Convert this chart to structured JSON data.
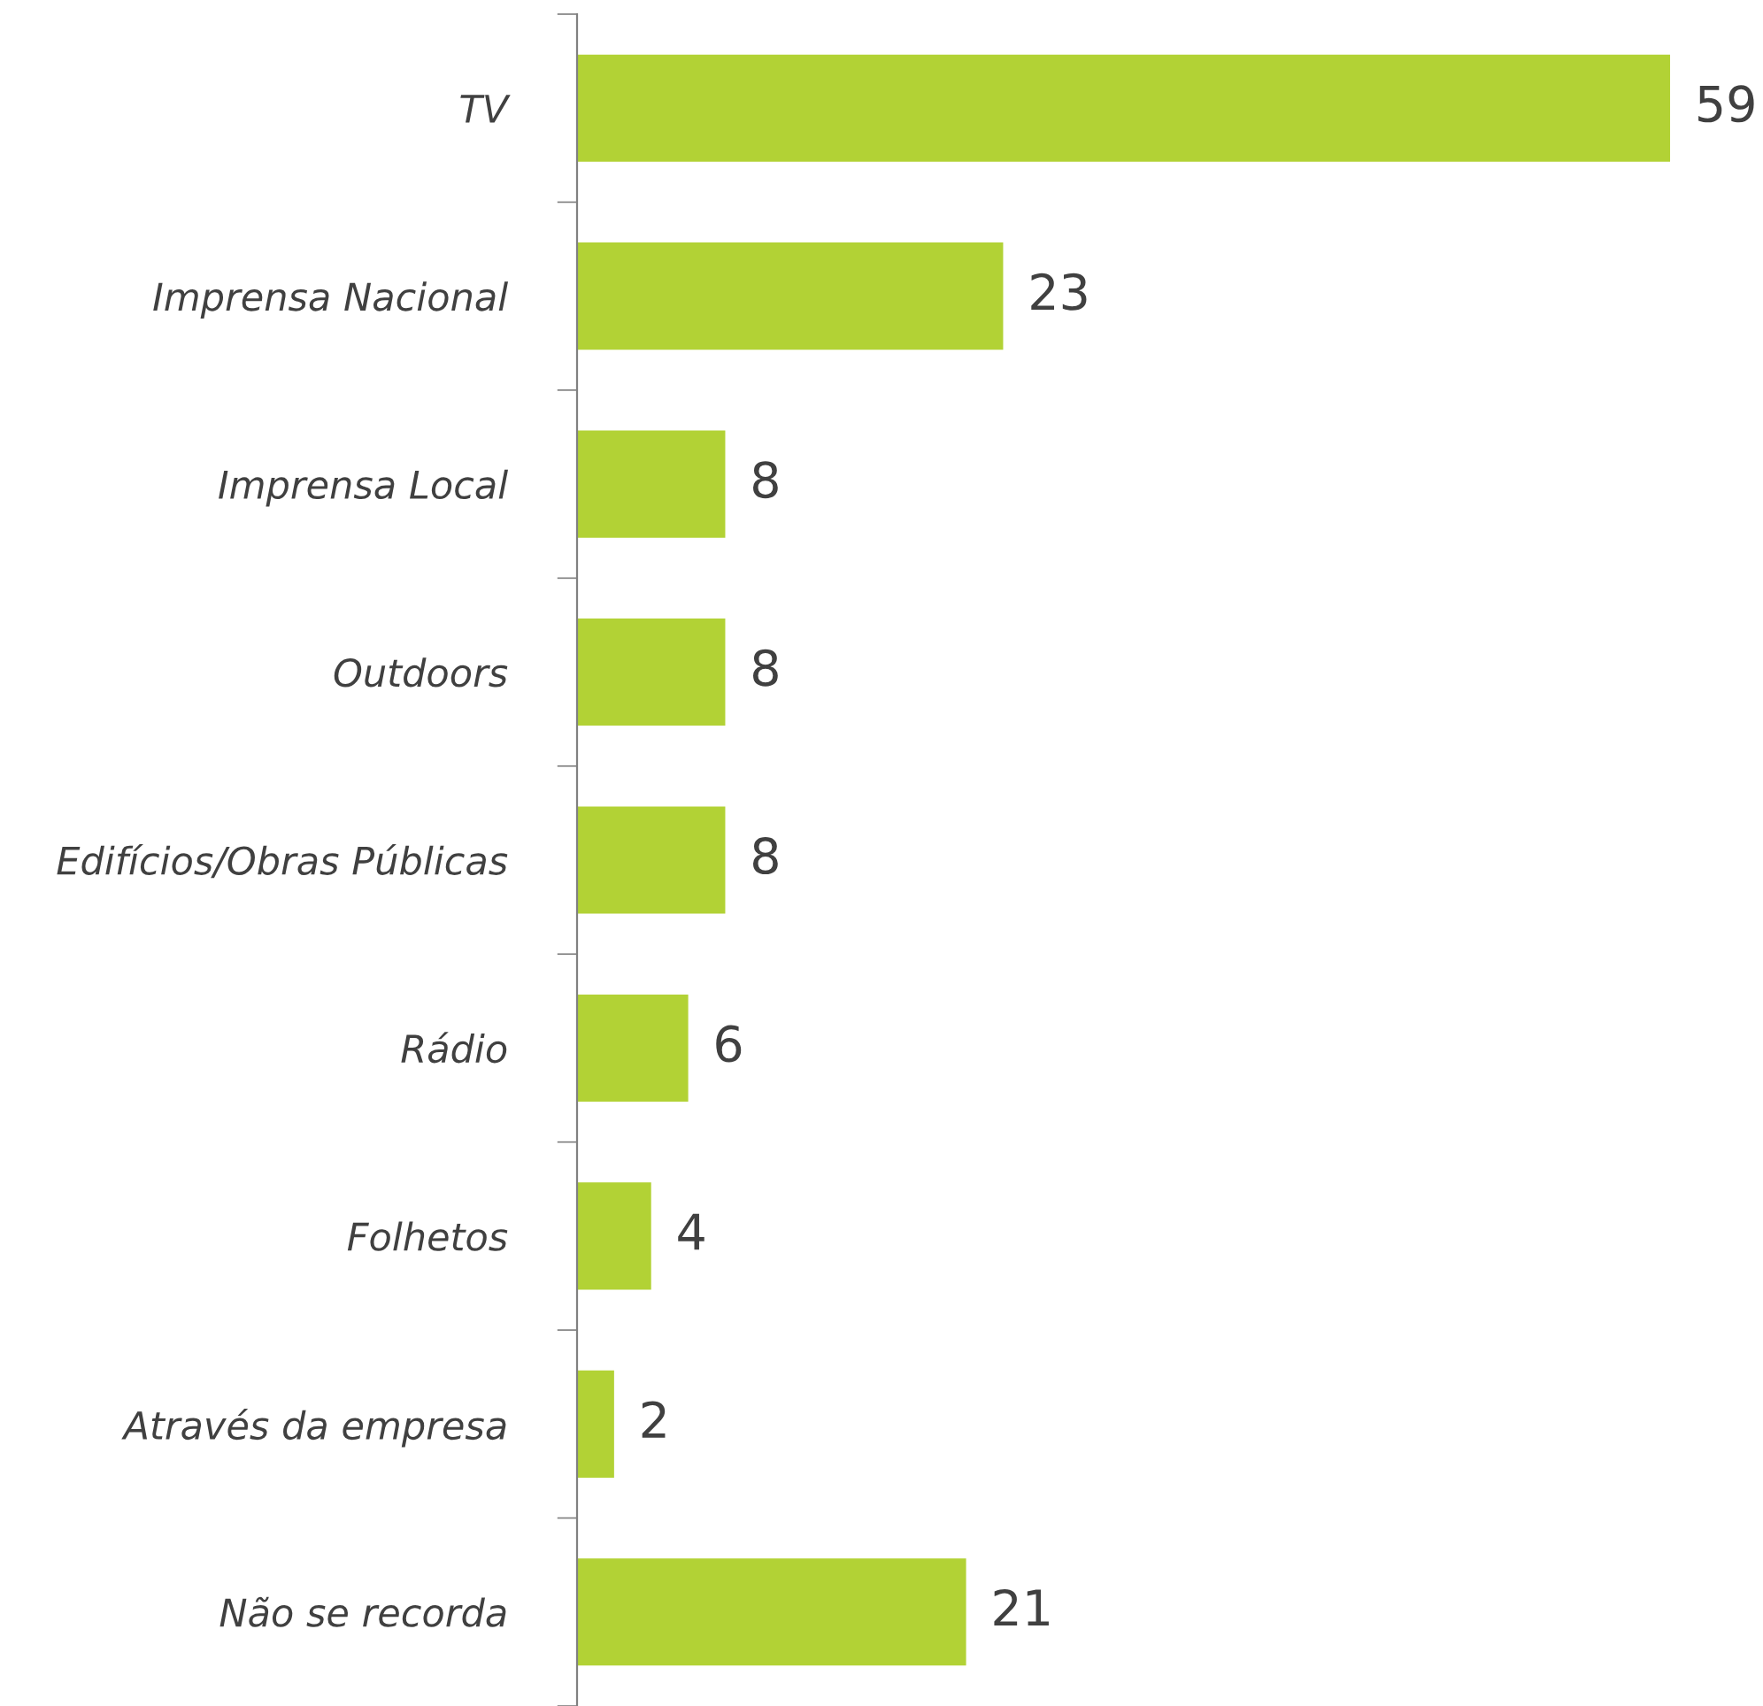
{
  "chart_data": {
    "type": "bar",
    "orientation": "horizontal",
    "categories": [
      "TV",
      "Imprensa Nacional",
      "Imprensa Local",
      "Outdoors",
      "Edifícios/Obras Públicas",
      "Rádio",
      "Folhetos",
      "Através da empresa",
      "Não se recorda"
    ],
    "values": [
      59,
      23,
      8,
      8,
      8,
      6,
      4,
      2,
      21
    ],
    "color": "#b2d235",
    "data_labels": true
  }
}
